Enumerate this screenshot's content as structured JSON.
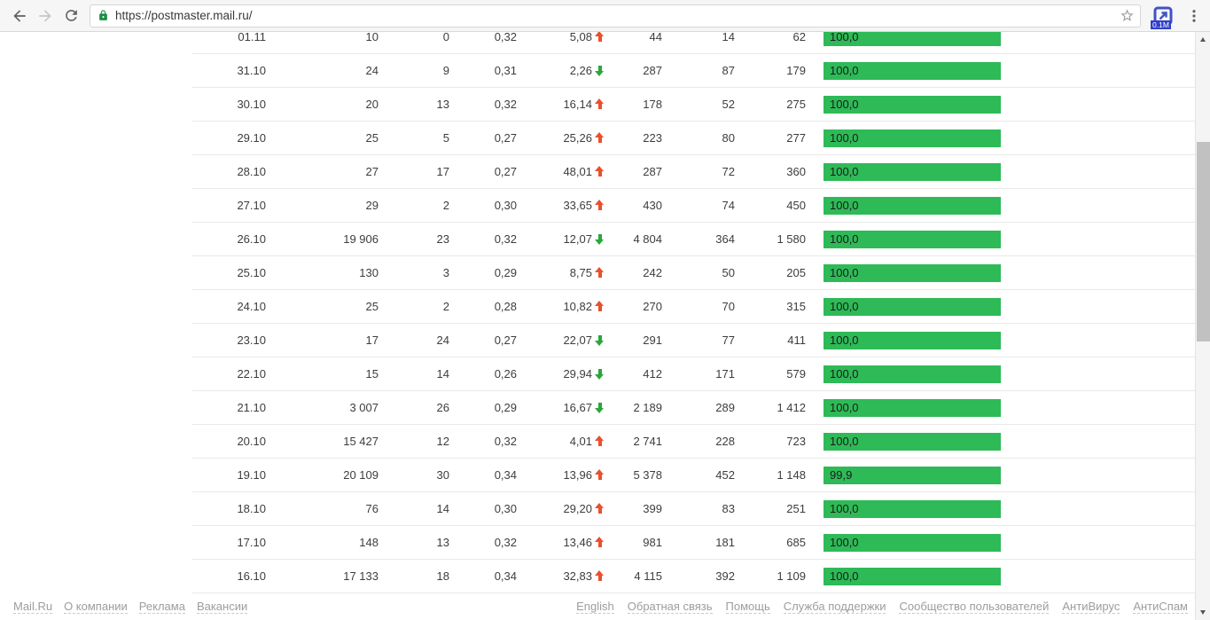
{
  "browser": {
    "url": "https://postmaster.mail.ru/",
    "extension_badge": "0.1M"
  },
  "table": {
    "rows": [
      {
        "date": "01.11",
        "c1": "10",
        "c2": "0",
        "c3": "0,32",
        "delta": "5,08",
        "trend": "up",
        "c5": "44",
        "c6": "14",
        "c7": "62",
        "rate_label": "100,0",
        "rate_value": 100
      },
      {
        "date": "31.10",
        "c1": "24",
        "c2": "9",
        "c3": "0,31",
        "delta": "2,26",
        "trend": "down",
        "c5": "287",
        "c6": "87",
        "c7": "179",
        "rate_label": "100,0",
        "rate_value": 100
      },
      {
        "date": "30.10",
        "c1": "20",
        "c2": "13",
        "c3": "0,32",
        "delta": "16,14",
        "trend": "up",
        "c5": "178",
        "c6": "52",
        "c7": "275",
        "rate_label": "100,0",
        "rate_value": 100
      },
      {
        "date": "29.10",
        "c1": "25",
        "c2": "5",
        "c3": "0,27",
        "delta": "25,26",
        "trend": "up",
        "c5": "223",
        "c6": "80",
        "c7": "277",
        "rate_label": "100,0",
        "rate_value": 100
      },
      {
        "date": "28.10",
        "c1": "27",
        "c2": "17",
        "c3": "0,27",
        "delta": "48,01",
        "trend": "up",
        "c5": "287",
        "c6": "72",
        "c7": "360",
        "rate_label": "100,0",
        "rate_value": 100
      },
      {
        "date": "27.10",
        "c1": "29",
        "c2": "2",
        "c3": "0,30",
        "delta": "33,65",
        "trend": "up",
        "c5": "430",
        "c6": "74",
        "c7": "450",
        "rate_label": "100,0",
        "rate_value": 100
      },
      {
        "date": "26.10",
        "c1": "19 906",
        "c2": "23",
        "c3": "0,32",
        "delta": "12,07",
        "trend": "down",
        "c5": "4 804",
        "c6": "364",
        "c7": "1 580",
        "rate_label": "100,0",
        "rate_value": 100
      },
      {
        "date": "25.10",
        "c1": "130",
        "c2": "3",
        "c3": "0,29",
        "delta": "8,75",
        "trend": "up",
        "c5": "242",
        "c6": "50",
        "c7": "205",
        "rate_label": "100,0",
        "rate_value": 100
      },
      {
        "date": "24.10",
        "c1": "25",
        "c2": "2",
        "c3": "0,28",
        "delta": "10,82",
        "trend": "up",
        "c5": "270",
        "c6": "70",
        "c7": "315",
        "rate_label": "100,0",
        "rate_value": 100
      },
      {
        "date": "23.10",
        "c1": "17",
        "c2": "24",
        "c3": "0,27",
        "delta": "22,07",
        "trend": "down",
        "c5": "291",
        "c6": "77",
        "c7": "411",
        "rate_label": "100,0",
        "rate_value": 100
      },
      {
        "date": "22.10",
        "c1": "15",
        "c2": "14",
        "c3": "0,26",
        "delta": "29,94",
        "trend": "down",
        "c5": "412",
        "c6": "171",
        "c7": "579",
        "rate_label": "100,0",
        "rate_value": 100
      },
      {
        "date": "21.10",
        "c1": "3 007",
        "c2": "26",
        "c3": "0,29",
        "delta": "16,67",
        "trend": "down",
        "c5": "2 189",
        "c6": "289",
        "c7": "1 412",
        "rate_label": "100,0",
        "rate_value": 100
      },
      {
        "date": "20.10",
        "c1": "15 427",
        "c2": "12",
        "c3": "0,32",
        "delta": "4,01",
        "trend": "up",
        "c5": "2 741",
        "c6": "228",
        "c7": "723",
        "rate_label": "100,0",
        "rate_value": 100
      },
      {
        "date": "19.10",
        "c1": "20 109",
        "c2": "30",
        "c3": "0,34",
        "delta": "13,96",
        "trend": "up",
        "c5": "5 378",
        "c6": "452",
        "c7": "1 148",
        "rate_label": "99,9",
        "rate_value": 99.9
      },
      {
        "date": "18.10",
        "c1": "76",
        "c2": "14",
        "c3": "0,30",
        "delta": "29,20",
        "trend": "up",
        "c5": "399",
        "c6": "83",
        "c7": "251",
        "rate_label": "100,0",
        "rate_value": 100
      },
      {
        "date": "17.10",
        "c1": "148",
        "c2": "13",
        "c3": "0,32",
        "delta": "13,46",
        "trend": "up",
        "c5": "981",
        "c6": "181",
        "c7": "685",
        "rate_label": "100,0",
        "rate_value": 100
      },
      {
        "date": "16.10",
        "c1": "17 133",
        "c2": "18",
        "c3": "0,34",
        "delta": "32,83",
        "trend": "up",
        "c5": "4 115",
        "c6": "392",
        "c7": "1 109",
        "rate_label": "100,0",
        "rate_value": 100
      }
    ]
  },
  "footer": {
    "left": [
      "Mail.Ru",
      "О компании",
      "Реклама",
      "Вакансии"
    ],
    "right": [
      "English",
      "Обратная связь",
      "Помощь",
      "Служба поддержки",
      "Сообщество пользователей",
      "АнтиВирус",
      "АнтиСпам"
    ]
  },
  "colors": {
    "bar_green": "#2eba57",
    "trend_up": "#e8512c",
    "trend_down": "#2ba63c",
    "link_gray": "#9d9d9d"
  }
}
